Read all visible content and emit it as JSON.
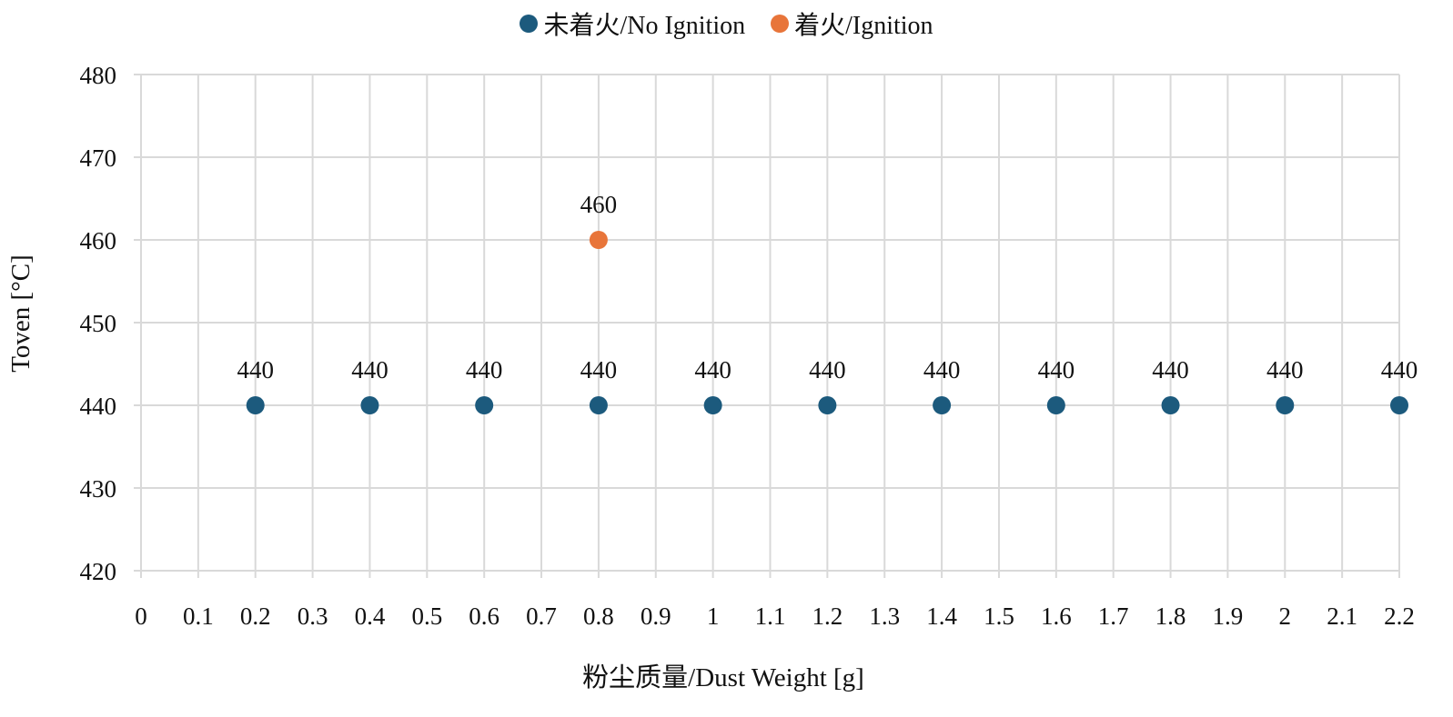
{
  "chart_data": {
    "type": "scatter",
    "title": "",
    "xlabel": "粉尘质量/Dust Weight [g]",
    "ylabel": "Toven [°C]",
    "xlim": [
      0,
      2.2
    ],
    "ylim": [
      420,
      480
    ],
    "x_ticks": [
      "0",
      "0.1",
      "0.2",
      "0.3",
      "0.4",
      "0.5",
      "0.6",
      "0.7",
      "0.8",
      "0.9",
      "1",
      "1.1",
      "1.2",
      "1.3",
      "1.4",
      "1.5",
      "1.6",
      "1.7",
      "1.8",
      "1.9",
      "2",
      "2.1",
      "2.2"
    ],
    "y_ticks": [
      "420",
      "430",
      "440",
      "450",
      "460",
      "470",
      "480"
    ],
    "grid": true,
    "legend_position": "top-center",
    "series": [
      {
        "name": "未着火/No Ignition",
        "color": "#1c5a7d",
        "points": [
          {
            "x": 0.2,
            "y": 440,
            "label": "440"
          },
          {
            "x": 0.4,
            "y": 440,
            "label": "440"
          },
          {
            "x": 0.6,
            "y": 440,
            "label": "440"
          },
          {
            "x": 0.8,
            "y": 440,
            "label": "440"
          },
          {
            "x": 1.0,
            "y": 440,
            "label": "440"
          },
          {
            "x": 1.2,
            "y": 440,
            "label": "440"
          },
          {
            "x": 1.4,
            "y": 440,
            "label": "440"
          },
          {
            "x": 1.6,
            "y": 440,
            "label": "440"
          },
          {
            "x": 1.8,
            "y": 440,
            "label": "440"
          },
          {
            "x": 2.0,
            "y": 440,
            "label": "440"
          },
          {
            "x": 2.2,
            "y": 440,
            "label": "440"
          }
        ]
      },
      {
        "name": "着火/Ignition",
        "color": "#e8753a",
        "points": [
          {
            "x": 0.8,
            "y": 460,
            "label": "460"
          }
        ]
      }
    ]
  }
}
